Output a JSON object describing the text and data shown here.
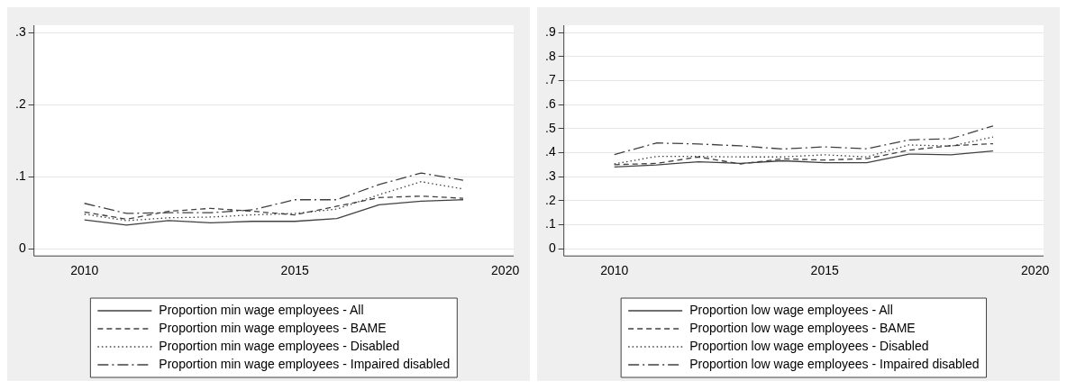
{
  "chart_data": [
    {
      "type": "line",
      "x": [
        2010,
        2011,
        2012,
        2013,
        2014,
        2015,
        2016,
        2017,
        2018,
        2019
      ],
      "xlim": [
        2008.8,
        2020.2
      ],
      "xticks": [
        2010,
        2015,
        2020
      ],
      "ylim": [
        -0.01,
        0.31
      ],
      "yticks": [
        {
          "value": 0,
          "label": "0"
        },
        {
          "value": 0.1,
          "label": ".1"
        },
        {
          "value": 0.2,
          "label": ".2"
        },
        {
          "value": 0.3,
          "label": ".3"
        }
      ],
      "grid": "y",
      "legend": "bottom",
      "marker": "none",
      "series": [
        {
          "name": "Proportion min wage employees - All",
          "color": "#404040",
          "line_style": "solid",
          "values": [
            0.04,
            0.033,
            0.039,
            0.036,
            0.038,
            0.038,
            0.042,
            0.061,
            0.066,
            0.068
          ]
        },
        {
          "name": "Proportion min wage employees - BAME",
          "color": "#404040",
          "line_style": "dashed",
          "values": [
            0.051,
            0.041,
            0.052,
            0.056,
            0.052,
            0.047,
            0.059,
            0.071,
            0.073,
            0.07
          ]
        },
        {
          "name": "Proportion min wage employees - Disabled",
          "color": "#404040",
          "line_style": "dotted",
          "values": [
            0.048,
            0.039,
            0.043,
            0.044,
            0.047,
            0.049,
            0.055,
            0.075,
            0.093,
            0.083
          ]
        },
        {
          "name": "Proportion min wage employees - Impaired disabled",
          "color": "#404040",
          "line_style": "dashdot",
          "values": [
            0.063,
            0.049,
            0.05,
            0.05,
            0.054,
            0.068,
            0.068,
            0.089,
            0.105,
            0.095
          ]
        }
      ]
    },
    {
      "type": "line",
      "x": [
        2010,
        2011,
        2012,
        2013,
        2014,
        2015,
        2016,
        2017,
        2018,
        2019
      ],
      "xlim": [
        2008.8,
        2020.2
      ],
      "xticks": [
        2010,
        2015,
        2020
      ],
      "ylim": [
        -0.03,
        0.93
      ],
      "yticks": [
        {
          "value": 0,
          "label": "0"
        },
        {
          "value": 0.1,
          "label": ".1"
        },
        {
          "value": 0.2,
          "label": ".2"
        },
        {
          "value": 0.3,
          "label": ".3"
        },
        {
          "value": 0.4,
          "label": ".4"
        },
        {
          "value": 0.5,
          "label": ".5"
        },
        {
          "value": 0.6,
          "label": ".6"
        },
        {
          "value": 0.7,
          "label": ".7"
        },
        {
          "value": 0.8,
          "label": ".8"
        },
        {
          "value": 0.9,
          "label": ".9"
        }
      ],
      "grid": "y",
      "legend": "bottom",
      "marker": "none",
      "series": [
        {
          "name": "Proportion low wage employees - All",
          "color": "#404040",
          "line_style": "solid",
          "values": [
            0.34,
            0.349,
            0.362,
            0.355,
            0.366,
            0.358,
            0.358,
            0.394,
            0.391,
            0.407
          ]
        },
        {
          "name": "Proportion low wage employees - BAME",
          "color": "#404040",
          "line_style": "dashed",
          "values": [
            0.35,
            0.355,
            0.382,
            0.353,
            0.374,
            0.369,
            0.375,
            0.41,
            0.429,
            0.437
          ]
        },
        {
          "name": "Proportion low wage employees - Disabled",
          "color": "#404040",
          "line_style": "dotted",
          "values": [
            0.353,
            0.384,
            0.384,
            0.382,
            0.382,
            0.391,
            0.382,
            0.432,
            0.427,
            0.465
          ]
        },
        {
          "name": "Proportion low wage employees - Impaired disabled",
          "color": "#404040",
          "line_style": "dashdot",
          "values": [
            0.392,
            0.44,
            0.436,
            0.428,
            0.415,
            0.424,
            0.416,
            0.453,
            0.458,
            0.511
          ]
        }
      ]
    }
  ]
}
